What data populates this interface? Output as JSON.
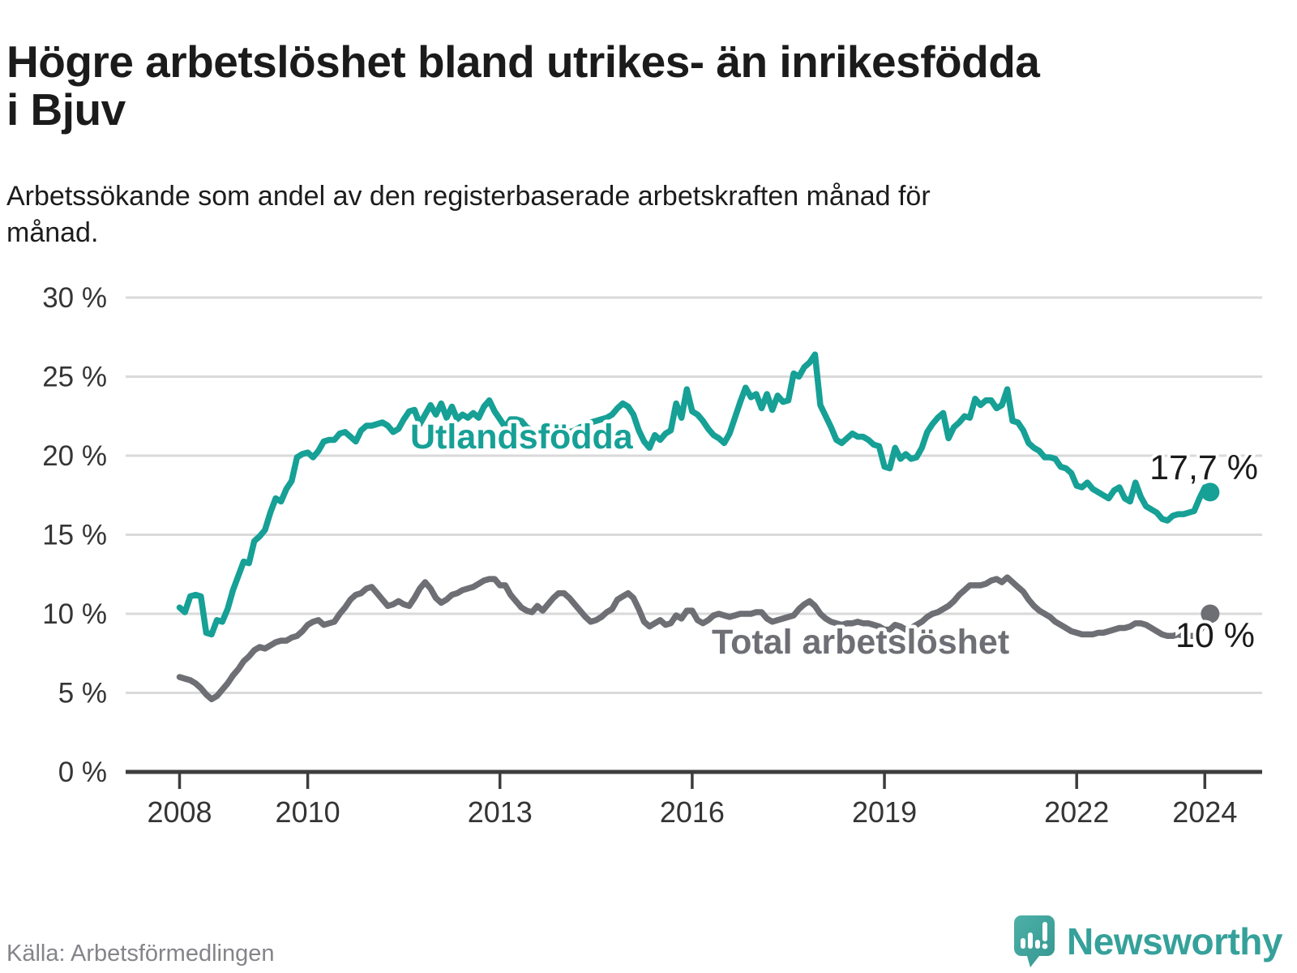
{
  "header": {
    "title": "Högre arbetslöshet bland utrikes- än inrikesfödda i Bjuv",
    "subtitle": "Arbetssökande som andel av den registerbaserade arbetskraften månad för månad."
  },
  "footer": {
    "source": "Källa: Arbetsförmedlingen",
    "logo_text": "Newsworthy"
  },
  "colors": {
    "teal_series": "#16a096",
    "gray_series": "#6e6f75",
    "end_label_text": "#1b1b1b",
    "gridline": "#dadada",
    "axis": "#3d3d3d",
    "tick_label": "#353535",
    "title_text": "#1b1b1b",
    "source_text": "#84848a",
    "logo_teal": "#35a19a",
    "logo_icon_fill": "#3fa8a1",
    "logo_icon_dark": "#2e968f"
  },
  "chart_data": {
    "type": "line",
    "title": "Högre arbetslöshet bland utrikes- än inrikesfödda i Bjuv",
    "xlabel": "",
    "ylabel": "",
    "x_start": "2008-01",
    "x_end": "2024-02",
    "x_step_months": 1,
    "x_ticks": [
      "2008",
      "2010",
      "2013",
      "2016",
      "2019",
      "2022",
      "2024"
    ],
    "x_tick_years": [
      2008,
      2010,
      2013,
      2016,
      2019,
      2022,
      2024
    ],
    "y_ticks": [
      0,
      5,
      10,
      15,
      20,
      25,
      30
    ],
    "y_tick_suffix": " %",
    "ylim": [
      0,
      30
    ],
    "grid": true,
    "legend_position": "inline-labels",
    "series": [
      {
        "name": "Total arbetslöshet",
        "end_label": "10 %",
        "end_value": 10.0,
        "values": [
          6.0,
          5.9,
          5.8,
          5.6,
          5.3,
          4.9,
          4.6,
          4.8,
          5.2,
          5.6,
          6.1,
          6.5,
          7.0,
          7.3,
          7.7,
          7.9,
          7.8,
          8.0,
          8.2,
          8.3,
          8.3,
          8.5,
          8.6,
          8.9,
          9.3,
          9.5,
          9.6,
          9.3,
          9.4,
          9.5,
          10.0,
          10.4,
          10.9,
          11.2,
          11.3,
          11.6,
          11.7,
          11.3,
          10.9,
          10.5,
          10.6,
          10.8,
          10.6,
          10.5,
          11.0,
          11.6,
          12.0,
          11.6,
          11.0,
          10.7,
          10.9,
          11.2,
          11.3,
          11.5,
          11.6,
          11.7,
          11.9,
          12.1,
          12.2,
          12.2,
          11.8,
          11.8,
          11.2,
          10.8,
          10.4,
          10.2,
          10.1,
          10.5,
          10.2,
          10.6,
          11.0,
          11.3,
          11.3,
          11.0,
          10.6,
          10.2,
          9.8,
          9.5,
          9.6,
          9.8,
          10.1,
          10.3,
          10.9,
          11.1,
          11.3,
          11.0,
          10.3,
          9.5,
          9.2,
          9.4,
          9.6,
          9.3,
          9.4,
          9.9,
          9.7,
          10.2,
          10.2,
          9.6,
          9.4,
          9.6,
          9.9,
          10.0,
          9.9,
          9.8,
          9.9,
          10.0,
          10.0,
          10.0,
          10.1,
          10.1,
          9.7,
          9.5,
          9.6,
          9.7,
          9.8,
          9.9,
          10.3,
          10.6,
          10.8,
          10.5,
          10.0,
          9.7,
          9.5,
          9.4,
          9.3,
          9.4,
          9.4,
          9.5,
          9.4,
          9.4,
          9.3,
          9.2,
          9.0,
          9.0,
          9.3,
          9.2,
          9.0,
          9.1,
          9.3,
          9.5,
          9.8,
          10.0,
          10.1,
          10.3,
          10.5,
          10.8,
          11.2,
          11.5,
          11.8,
          11.8,
          11.8,
          11.9,
          12.1,
          12.2,
          12.0,
          12.3,
          12.0,
          11.7,
          11.4,
          10.9,
          10.5,
          10.2,
          10.0,
          9.8,
          9.5,
          9.3,
          9.1,
          8.9,
          8.8,
          8.7,
          8.7,
          8.7,
          8.8,
          8.8,
          8.9,
          9.0,
          9.1,
          9.1,
          9.2,
          9.4,
          9.4,
          9.3,
          9.1,
          8.9,
          8.7,
          8.6,
          8.6,
          8.7,
          8.6,
          8.6,
          8.6,
          8.9,
          9.4,
          10.0
        ]
      },
      {
        "name": "Utlandsfödda",
        "end_label": "17,7 %",
        "end_value": 17.7,
        "values": [
          10.4,
          10.1,
          11.1,
          11.2,
          11.1,
          8.8,
          8.7,
          9.6,
          9.5,
          10.3,
          11.5,
          12.4,
          13.3,
          13.2,
          14.6,
          14.9,
          15.3,
          16.4,
          17.3,
          17.1,
          17.9,
          18.4,
          19.9,
          20.1,
          20.2,
          19.9,
          20.3,
          20.9,
          21.0,
          21.0,
          21.4,
          21.5,
          21.2,
          20.9,
          21.6,
          21.9,
          21.9,
          22.0,
          22.1,
          21.9,
          21.5,
          21.7,
          22.3,
          22.8,
          22.9,
          22.0,
          22.6,
          23.2,
          22.6,
          23.3,
          22.4,
          23.1,
          22.3,
          22.6,
          22.4,
          22.7,
          22.4,
          23.1,
          23.5,
          22.8,
          22.3,
          21.8,
          22.3,
          22.3,
          22.2,
          21.8,
          21.6,
          21.5,
          21.4,
          21.5,
          21.8,
          21.9,
          21.7,
          21.5,
          21.6,
          21.8,
          21.9,
          22.1,
          22.2,
          22.3,
          22.4,
          22.6,
          23.0,
          23.3,
          23.1,
          22.6,
          21.6,
          20.9,
          20.5,
          21.3,
          21.0,
          21.4,
          21.6,
          23.3,
          22.4,
          24.2,
          22.8,
          22.6,
          22.2,
          21.7,
          21.3,
          21.1,
          20.8,
          21.4,
          22.4,
          23.4,
          24.3,
          23.7,
          23.9,
          23.0,
          23.9,
          22.9,
          23.8,
          23.4,
          23.5,
          25.2,
          25.0,
          25.6,
          25.9,
          26.4,
          23.2,
          22.5,
          21.8,
          21.0,
          20.8,
          21.1,
          21.4,
          21.2,
          21.2,
          21.0,
          20.7,
          20.6,
          19.3,
          19.2,
          20.5,
          19.8,
          20.1,
          19.8,
          19.9,
          20.5,
          21.5,
          22.0,
          22.4,
          22.7,
          21.1,
          21.8,
          22.1,
          22.5,
          22.4,
          23.6,
          23.2,
          23.5,
          23.5,
          23.0,
          23.2,
          24.2,
          22.2,
          22.1,
          21.6,
          20.8,
          20.5,
          20.3,
          19.9,
          19.9,
          19.8,
          19.3,
          19.2,
          18.9,
          18.1,
          18.0,
          18.3,
          17.9,
          17.7,
          17.5,
          17.3,
          17.8,
          18.0,
          17.3,
          17.1,
          18.3,
          17.4,
          16.8,
          16.6,
          16.4,
          16.0,
          15.9,
          16.2,
          16.3,
          16.3,
          16.4,
          16.5,
          17.3,
          18.0,
          17.7
        ]
      }
    ]
  }
}
